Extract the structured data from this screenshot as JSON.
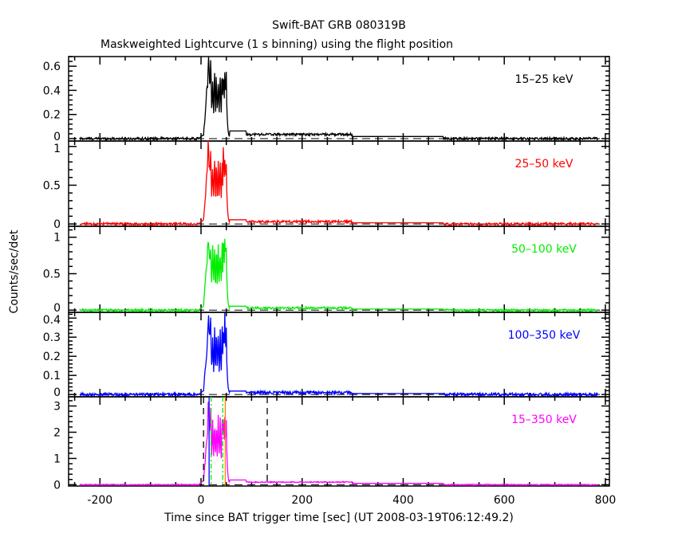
{
  "chart_data": {
    "type": "line",
    "title": "Swift-BAT GRB 080319B",
    "subtitle": "Maskweighted Lightcurve (1 s binning) using the flight position",
    "xlabel": "Time since BAT trigger time [sec] (UT 2008-03-19T06:12:49.2)",
    "ylabel": "Counts/sec/det",
    "xlim": [
      -262,
      808
    ],
    "x_ticks": [
      -200,
      0,
      200,
      400,
      600,
      800
    ],
    "x_tick_labels": [
      "-200",
      "0",
      "200",
      "400",
      "600",
      "800"
    ],
    "panels": [
      {
        "name": "15-25 keV",
        "label": "15–25 keV",
        "color": "#000000",
        "ylim": [
          -0.02,
          0.68
        ],
        "y_ticks": [
          0,
          0.2,
          0.4,
          0.6
        ],
        "y_tick_labels": [
          "0",
          "0.2",
          "0.4",
          "0.6"
        ],
        "peak": 0.65,
        "plateau": 0.4,
        "tail": 0.035,
        "noise": 0.01
      },
      {
        "name": "25-50 keV",
        "label": "25–50 keV",
        "color": "#ff0000",
        "ylim": [
          -0.03,
          1.07
        ],
        "y_ticks": [
          0,
          0.5,
          1
        ],
        "y_tick_labels": [
          "0",
          "0.5",
          "1"
        ],
        "peak": 1.0,
        "plateau": 0.6,
        "tail": 0.03,
        "noise": 0.015
      },
      {
        "name": "50-100 keV",
        "label": "50–100 keV",
        "color": "#00ee00",
        "ylim": [
          -0.03,
          1.15
        ],
        "y_ticks": [
          0,
          0.5,
          1
        ],
        "y_tick_labels": [
          "0",
          "0.5",
          "1"
        ],
        "peak": 1.1,
        "plateau": 0.65,
        "tail": 0.03,
        "noise": 0.015
      },
      {
        "name": "100-350 keV",
        "label": "100–350 keV",
        "color": "#0000ff",
        "ylim": [
          -0.012,
          0.43
        ],
        "y_ticks": [
          0,
          0.1,
          0.2,
          0.3,
          0.4
        ],
        "y_tick_labels": [
          "0",
          "0.1",
          "0.2",
          "0.3",
          "0.4"
        ],
        "peak": 0.41,
        "plateau": 0.25,
        "tail": 0.01,
        "noise": 0.008
      },
      {
        "name": "15-350 keV",
        "label": "15–350 keV",
        "color": "#ff00ff",
        "ylim": [
          -0.05,
          3.35
        ],
        "y_ticks": [
          0,
          1,
          2,
          3
        ],
        "y_tick_labels": [
          "0",
          "1",
          "2",
          "3"
        ],
        "peak": 3.1,
        "plateau": 1.9,
        "tail": 0.1,
        "noise": 0.02
      }
    ],
    "markers": [
      {
        "name": "t-start-dashed",
        "x": 5,
        "color": "#000000",
        "style": "dashed"
      },
      {
        "name": "t-end-dashed",
        "x": 131,
        "color": "#000000",
        "style": "dashed"
      },
      {
        "name": "t90-start",
        "x": 16,
        "color": "#0000ff",
        "style": "solid"
      },
      {
        "name": "t50-start",
        "x": 20,
        "color": "#00ee00",
        "style": "dashdot"
      },
      {
        "name": "t50-end",
        "x": 43,
        "color": "#00ee00",
        "style": "dashdot"
      },
      {
        "name": "t90-end",
        "x": 48,
        "color": "#ff8000",
        "style": "solid"
      }
    ]
  }
}
